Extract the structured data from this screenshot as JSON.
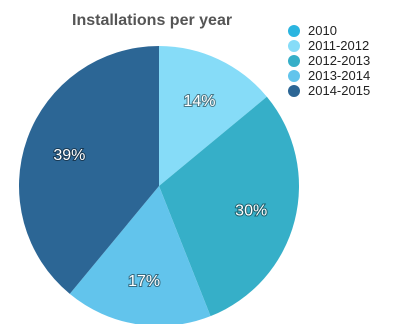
{
  "chart_data": {
    "type": "pie",
    "title": "Installations per year",
    "legend_position": "top-right",
    "slices": [
      {
        "name": "2010",
        "value": 0,
        "label": "",
        "color": "#2bb5e0"
      },
      {
        "name": "2011-2012",
        "value": 14,
        "label": "14%",
        "color": "#86dcf8"
      },
      {
        "name": "2012-2013",
        "value": 30,
        "label": "30%",
        "color": "#36afc8"
      },
      {
        "name": "2013-2014",
        "value": 17,
        "label": "17%",
        "color": "#62c4ec"
      },
      {
        "name": "2014-2015",
        "value": 39,
        "label": "39%",
        "color": "#2c6695"
      }
    ]
  }
}
